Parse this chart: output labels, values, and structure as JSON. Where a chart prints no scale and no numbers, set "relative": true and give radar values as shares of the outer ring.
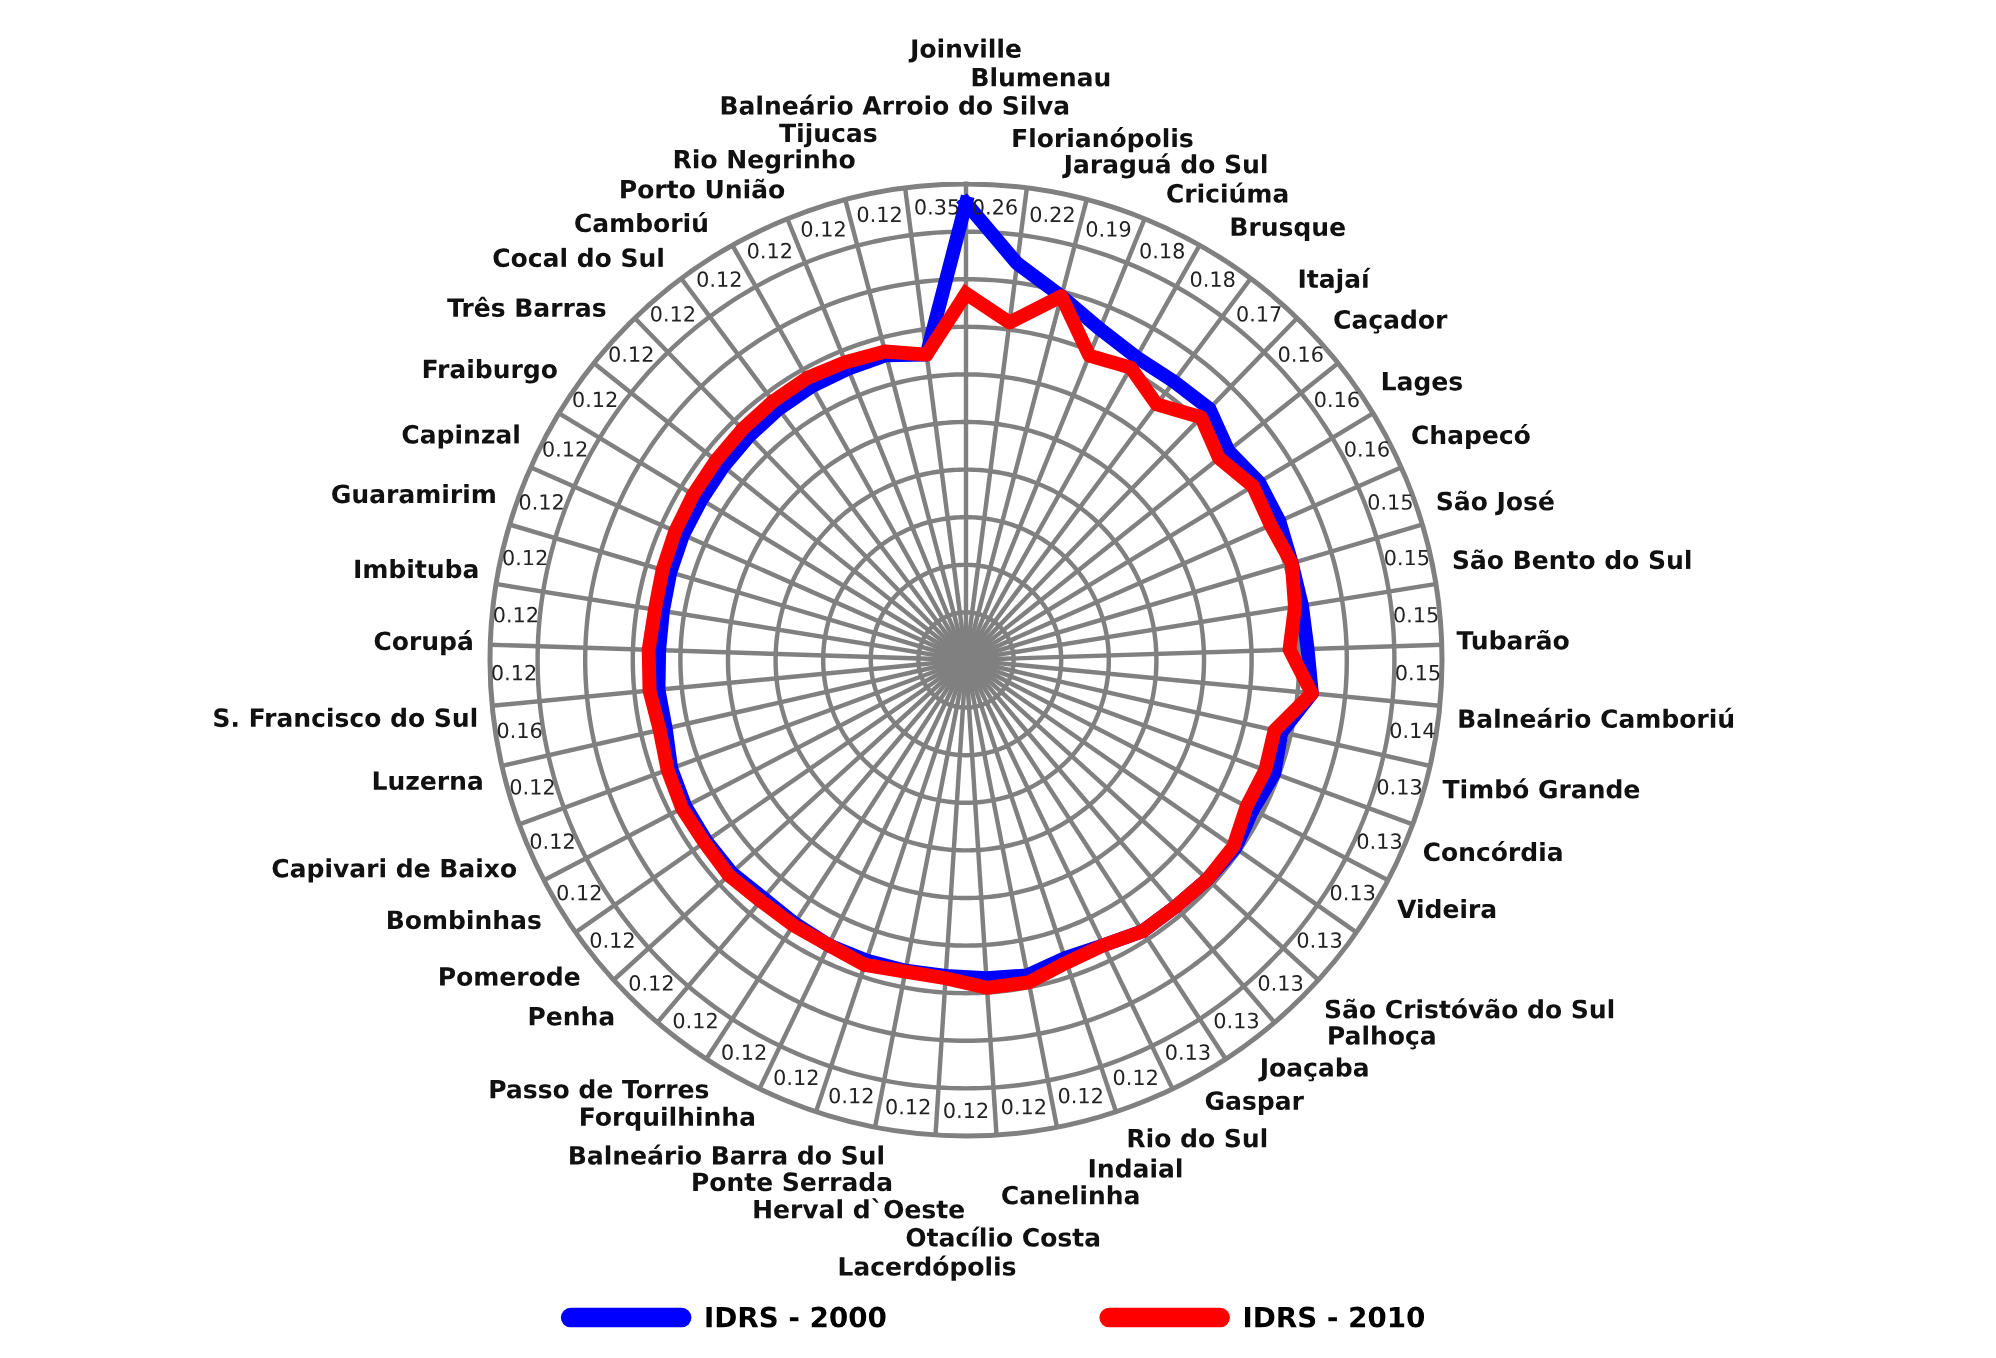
{
  "chart_data": {
    "type": "radar",
    "relative": true,
    "grid": true,
    "legend": "bottom",
    "categories": [
      "Joinville",
      "Blumenau",
      "Florianópolis",
      "Jaraguá do Sul",
      "Criciúma",
      "Brusque",
      "Itajaí",
      "Caçador",
      "Lages",
      "Chapecó",
      "São José",
      "São Bento do Sul",
      "Tubarão",
      "Balneário Camboriú",
      "Timbó Grande",
      "Concórdia",
      "Videira",
      "São Cristóvão do Sul",
      "Palhoça",
      "Joaçaba",
      "Gaspar",
      "Rio do Sul",
      "Indaial",
      "Canelinha",
      "Otacílio Costa",
      "Lacerdópolis",
      "Herval d`Oeste",
      "Ponte Serrada",
      "Balneário Barra do Sul",
      "Forquilhinha",
      "Passo de Torres",
      "Penha",
      "Pomerode",
      "Bombinhas",
      "Capivari de Baixo",
      "Luzerna",
      "S. Francisco do Sul",
      "Corupá",
      "Imbituba",
      "Guaramirim",
      "Capinzal",
      "Fraiburgo",
      "Três Barras",
      "Cocal do Sul",
      "Camboriú",
      "Porto União",
      "Rio Negrinho",
      "Tijucas",
      "Balneário Arroio do Silva"
    ],
    "series": [
      {
        "name": "IDRS - 2000",
        "color": "#0000ff",
        "values": [
          0.96,
          0.84,
          0.79,
          0.75,
          0.73,
          0.73,
          0.735,
          0.705,
          0.72,
          0.72,
          0.714,
          0.715,
          0.718,
          0.73,
          0.68,
          0.69,
          0.68,
          0.69,
          0.685,
          0.68,
          0.68,
          0.665,
          0.66,
          0.675,
          0.67,
          0.665,
          0.665,
          0.665,
          0.665,
          0.66,
          0.657,
          0.665,
          0.665,
          0.665,
          0.66,
          0.647,
          0.649,
          0.645,
          0.645,
          0.648,
          0.65,
          0.65,
          0.652,
          0.655,
          0.658,
          0.66,
          0.66,
          0.662,
          0.647
        ]
      },
      {
        "name": "IDRS - 2010",
        "color": "#ff0000",
        "values": [
          0.77,
          0.715,
          0.79,
          0.69,
          0.705,
          0.67,
          0.71,
          0.68,
          0.705,
          0.7,
          0.714,
          0.7,
          0.68,
          0.73,
          0.665,
          0.67,
          0.665,
          0.685,
          0.685,
          0.68,
          0.68,
          0.665,
          0.67,
          0.69,
          0.69,
          0.67,
          0.667,
          0.675,
          0.665,
          0.665,
          0.665,
          0.673,
          0.67,
          0.673,
          0.668,
          0.66,
          0.668,
          0.667,
          0.662,
          0.665,
          0.668,
          0.67,
          0.672,
          0.675,
          0.678,
          0.68,
          0.675,
          0.67,
          0.647
        ]
      }
    ],
    "annotations": [
      "0.35",
      "0.26",
      "0.22",
      "0.19",
      "0.18",
      "0.18",
      "0.17",
      "0.16",
      "0.16",
      "0.16",
      "0.15",
      "0.15",
      "0.15",
      "0.15",
      "0.14",
      "0.13",
      "0.13",
      "0.13",
      "0.13",
      "0.13",
      "0.13",
      "0.13",
      "0.12",
      "0.12",
      "0.12",
      "0.12",
      "0.12",
      "0.12",
      "0.12",
      "0.12",
      "0.12",
      "0.12",
      "0.12",
      "0.12",
      "0.12",
      "0.12",
      "0.16",
      "0.12",
      "0.12",
      "0.12",
      "0.12",
      "0.12",
      "0.12",
      "0.12",
      "0.12",
      "0.12",
      "0.12",
      "0.12",
      "0.12"
    ]
  }
}
